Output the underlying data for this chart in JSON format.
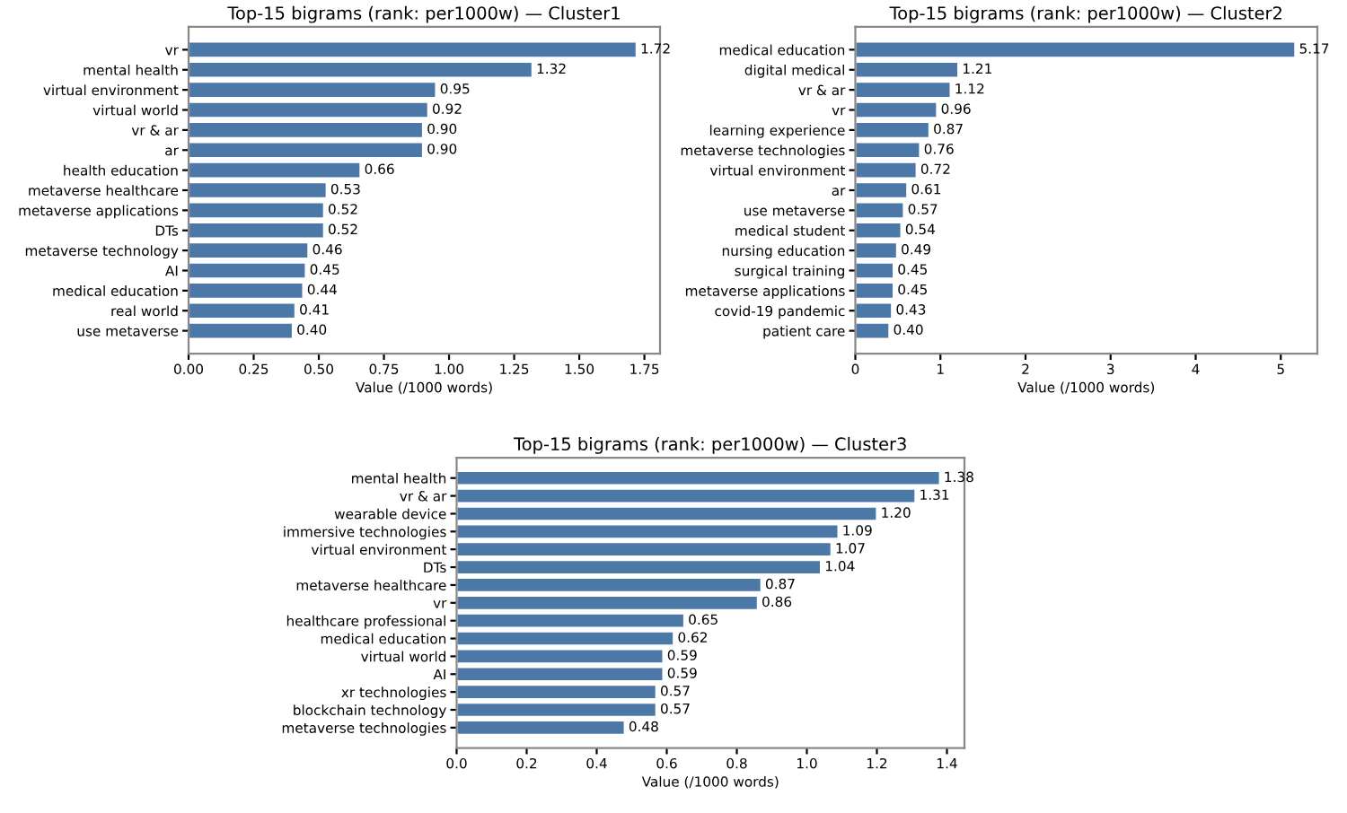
{
  "chart_data": [
    {
      "type": "bar",
      "orientation": "horizontal",
      "title": "Top-15 bigrams (rank: per1000w) — Cluster1",
      "xlabel": "Value (/1000 words)",
      "categories": [
        "vr",
        "mental health",
        "virtual environment",
        "virtual world",
        "vr & ar",
        "ar",
        "health education",
        "metaverse healthcare",
        "metaverse applications",
        "DTs",
        "metaverse technology",
        "AI",
        "medical education",
        "real world",
        "use metaverse"
      ],
      "values": [
        1.72,
        1.32,
        0.95,
        0.92,
        0.9,
        0.9,
        0.66,
        0.53,
        0.52,
        0.52,
        0.46,
        0.45,
        0.44,
        0.41,
        0.4
      ],
      "value_labels": [
        "1.72",
        "1.32",
        "0.95",
        "0.92",
        "0.90",
        "0.90",
        "0.66",
        "0.53",
        "0.52",
        "0.52",
        "0.46",
        "0.45",
        "0.44",
        "0.41",
        "0.40"
      ],
      "color": "#4c78a8",
      "xlim": [
        0,
        1.81
      ],
      "xticks": [
        "0.00",
        "0.25",
        "0.50",
        "0.75",
        "1.00",
        "1.25",
        "1.50",
        "1.75"
      ],
      "grid": false,
      "legend": false
    },
    {
      "type": "bar",
      "orientation": "horizontal",
      "title": "Top-15 bigrams (rank: per1000w) — Cluster2",
      "xlabel": "Value (/1000 words)",
      "categories": [
        "medical education",
        "digital medical",
        "vr & ar",
        "vr",
        "learning experience",
        "metaverse technologies",
        "virtual environment",
        "ar",
        "use metaverse",
        "medical student",
        "nursing education",
        "surgical training",
        "metaverse applications",
        "covid-19 pandemic",
        "patient care"
      ],
      "values": [
        5.17,
        1.21,
        1.12,
        0.96,
        0.87,
        0.76,
        0.72,
        0.61,
        0.57,
        0.54,
        0.49,
        0.45,
        0.45,
        0.43,
        0.4
      ],
      "value_labels": [
        "5.17",
        "1.21",
        "1.12",
        "0.96",
        "0.87",
        "0.76",
        "0.72",
        "0.61",
        "0.57",
        "0.54",
        "0.49",
        "0.45",
        "0.45",
        "0.43",
        "0.40"
      ],
      "color": "#4c78a8",
      "xlim": [
        0,
        5.43
      ],
      "xticks": [
        0,
        1,
        2,
        3,
        4,
        5
      ],
      "grid": false,
      "legend": false
    },
    {
      "type": "bar",
      "orientation": "horizontal",
      "title": "Top-15 bigrams (rank: per1000w) — Cluster3",
      "xlabel": "Value (/1000 words)",
      "categories": [
        "mental health",
        "vr & ar",
        "wearable device",
        "immersive technologies",
        "virtual environment",
        "DTs",
        "metaverse healthcare",
        "vr",
        "healthcare professional",
        "medical education",
        "virtual world",
        "AI",
        "xr technologies",
        "blockchain technology",
        "metaverse technologies"
      ],
      "values": [
        1.38,
        1.31,
        1.2,
        1.09,
        1.07,
        1.04,
        0.87,
        0.86,
        0.65,
        0.62,
        0.59,
        0.59,
        0.57,
        0.57,
        0.48
      ],
      "value_labels": [
        "1.38",
        "1.31",
        "1.20",
        "1.09",
        "1.07",
        "1.04",
        "0.87",
        "0.86",
        "0.65",
        "0.62",
        "0.59",
        "0.59",
        "0.57",
        "0.57",
        "0.48"
      ],
      "color": "#4c78a8",
      "xlim": [
        0,
        1.45
      ],
      "xticks": [
        "0.0",
        "0.2",
        "0.4",
        "0.6",
        "0.8",
        "1.0",
        "1.2",
        "1.4"
      ],
      "grid": false,
      "legend": false
    }
  ]
}
